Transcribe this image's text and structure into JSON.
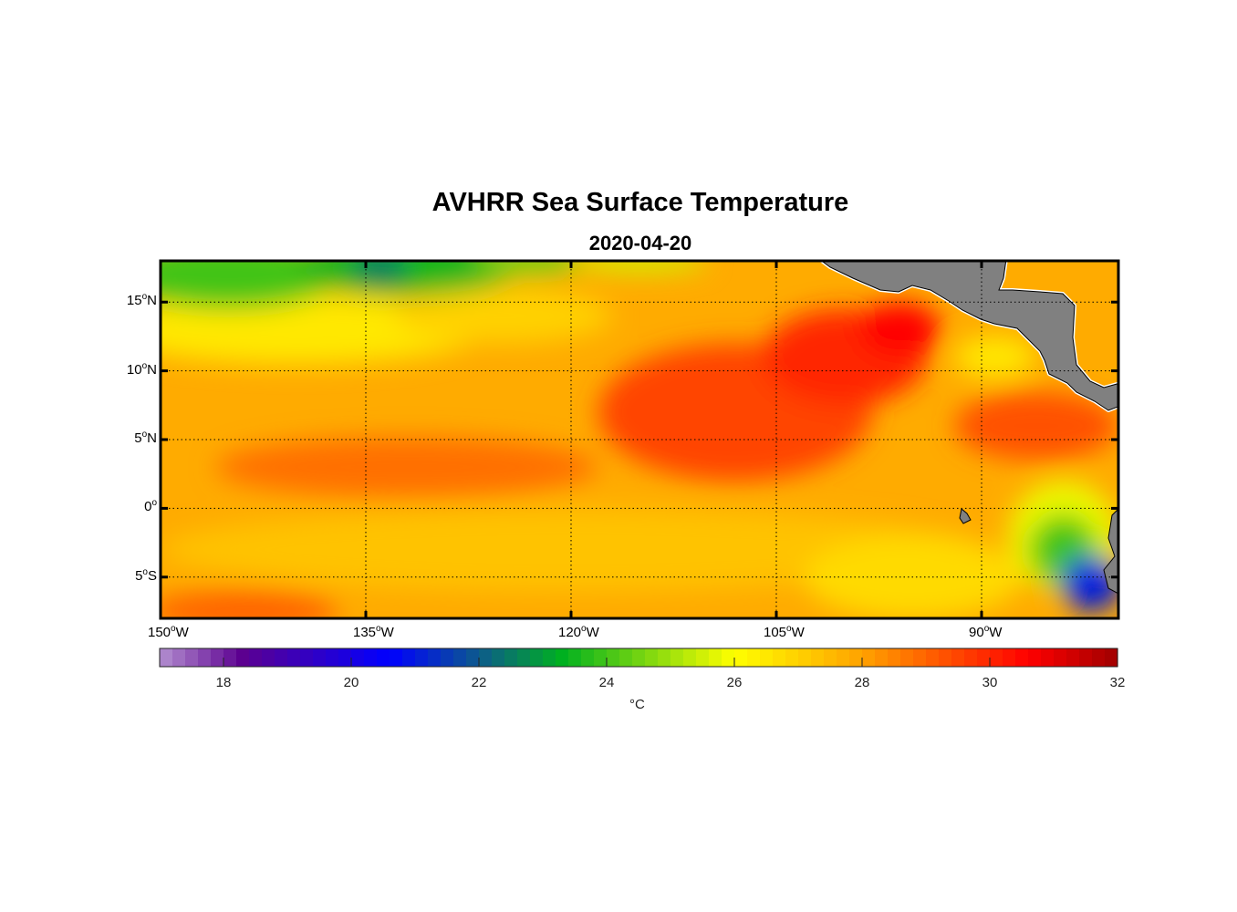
{
  "title": "AVHRR Sea Surface Temperature",
  "subtitle": "2020-04-20",
  "chart_data": {
    "type": "heatmap",
    "title": "AVHRR Sea Surface Temperature",
    "subtitle": "2020-04-20",
    "lon_range": [
      -150,
      -80
    ],
    "lat_range": [
      -8,
      18
    ],
    "x_ticks": [
      {
        "value": -150,
        "label": "150",
        "suffix": "W"
      },
      {
        "value": -135,
        "label": "135",
        "suffix": "W"
      },
      {
        "value": -120,
        "label": "120",
        "suffix": "W"
      },
      {
        "value": -105,
        "label": "105",
        "suffix": "W"
      },
      {
        "value": -90,
        "label": "90",
        "suffix": "W"
      }
    ],
    "y_ticks": [
      {
        "value": 15,
        "label": "15",
        "suffix": "N"
      },
      {
        "value": 10,
        "label": "10",
        "suffix": "N"
      },
      {
        "value": 5,
        "label": "5",
        "suffix": "N"
      },
      {
        "value": 0,
        "label": "0",
        "suffix": ""
      },
      {
        "value": -5,
        "label": "5",
        "suffix": "S"
      }
    ],
    "grid": true,
    "background_value": 27.8,
    "field": [
      {
        "lon": -140,
        "lat": 13,
        "rlon": 14,
        "rlat": 2.5,
        "value": 26.5
      },
      {
        "lon": -125,
        "lat": 14,
        "rlon": 8,
        "rlat": 2,
        "value": 27
      },
      {
        "lon": -145,
        "lat": 17,
        "rlon": 8,
        "rlat": 2.5,
        "value": 24
      },
      {
        "lon": -132,
        "lat": 17.5,
        "rlon": 8,
        "rlat": 2,
        "value": 23.5
      },
      {
        "lon": -134,
        "lat": 17.5,
        "rlon": 2,
        "rlat": 1.2,
        "value": 22.5
      },
      {
        "lon": -123,
        "lat": 18,
        "rlon": 4,
        "rlat": 1,
        "value": 24.5
      },
      {
        "lon": -115,
        "lat": 18,
        "rlon": 5,
        "rlat": 0.8,
        "value": 25.5
      },
      {
        "lon": -132,
        "lat": 3,
        "rlon": 14,
        "rlat": 2.2,
        "value": 28.8
      },
      {
        "lon": -108,
        "lat": 7,
        "rlon": 10,
        "rlat": 5,
        "value": 29.5
      },
      {
        "lon": -100,
        "lat": 11,
        "rlon": 6,
        "rlat": 3.5,
        "value": 30
      },
      {
        "lon": -96,
        "lat": 13,
        "rlon": 3,
        "rlat": 2,
        "value": 30.5
      },
      {
        "lon": -86,
        "lat": 6,
        "rlon": 6,
        "rlat": 2.5,
        "value": 29.3
      },
      {
        "lon": -89,
        "lat": 11,
        "rlon": 3,
        "rlat": 1.5,
        "value": 26.5
      },
      {
        "lon": -120,
        "lat": -3,
        "rlon": 30,
        "rlat": 3,
        "value": 27.3
      },
      {
        "lon": -144,
        "lat": -7.5,
        "rlon": 7,
        "rlat": 1.5,
        "value": 29
      },
      {
        "lon": -95,
        "lat": -5,
        "rlon": 8,
        "rlat": 3,
        "value": 26.8
      },
      {
        "lon": -84,
        "lat": -2,
        "rlon": 4,
        "rlat": 4,
        "value": 25.8
      },
      {
        "lon": -84,
        "lat": -3,
        "rlon": 2.5,
        "rlat": 2.5,
        "value": 24
      },
      {
        "lon": -82,
        "lat": -5.5,
        "rlon": 2.2,
        "rlat": 2,
        "value": 21
      }
    ],
    "colorbar": {
      "min": 17,
      "max": 32,
      "ticks": [
        18,
        20,
        22,
        24,
        26,
        28,
        30,
        32
      ],
      "label": "°C",
      "stops": [
        [
          17,
          "#b38fd0"
        ],
        [
          18.3,
          "#5c0090"
        ],
        [
          20.6,
          "#0000ff"
        ],
        [
          22,
          "#0d5a8c"
        ],
        [
          23.3,
          "#00b020"
        ],
        [
          26,
          "#ffff00"
        ],
        [
          28,
          "#ffa200"
        ],
        [
          30.6,
          "#ff0000"
        ],
        [
          32,
          "#a00000"
        ]
      ]
    }
  }
}
